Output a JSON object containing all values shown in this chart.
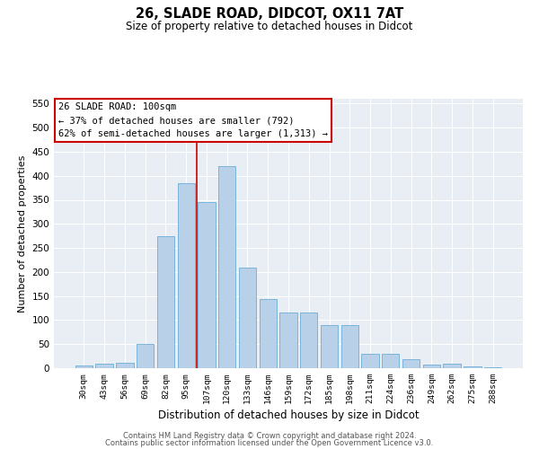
{
  "title1": "26, SLADE ROAD, DIDCOT, OX11 7AT",
  "title2": "Size of property relative to detached houses in Didcot",
  "xlabel": "Distribution of detached houses by size in Didcot",
  "ylabel": "Number of detached properties",
  "categories": [
    "30sqm",
    "43sqm",
    "56sqm",
    "69sqm",
    "82sqm",
    "95sqm",
    "107sqm",
    "120sqm",
    "133sqm",
    "146sqm",
    "159sqm",
    "172sqm",
    "185sqm",
    "198sqm",
    "211sqm",
    "224sqm",
    "236sqm",
    "249sqm",
    "262sqm",
    "275sqm",
    "288sqm"
  ],
  "values": [
    5,
    10,
    12,
    50,
    275,
    385,
    345,
    420,
    210,
    143,
    115,
    115,
    90,
    90,
    30,
    30,
    18,
    7,
    10,
    3,
    2
  ],
  "bar_color": "#b8d0e8",
  "bar_edge_color": "#6baed6",
  "vline_x_idx": 6,
  "vline_color": "#cc0000",
  "annotation_text": "26 SLADE ROAD: 100sqm\n← 37% of detached houses are smaller (792)\n62% of semi-detached houses are larger (1,313) →",
  "annotation_box_color": "white",
  "annotation_box_edge": "#cc0000",
  "ylim": [
    0,
    560
  ],
  "yticks": [
    0,
    50,
    100,
    150,
    200,
    250,
    300,
    350,
    400,
    450,
    500,
    550
  ],
  "bg_color": "#e8eef4",
  "footer1": "Contains HM Land Registry data © Crown copyright and database right 2024.",
  "footer2": "Contains public sector information licensed under the Open Government Licence v3.0."
}
